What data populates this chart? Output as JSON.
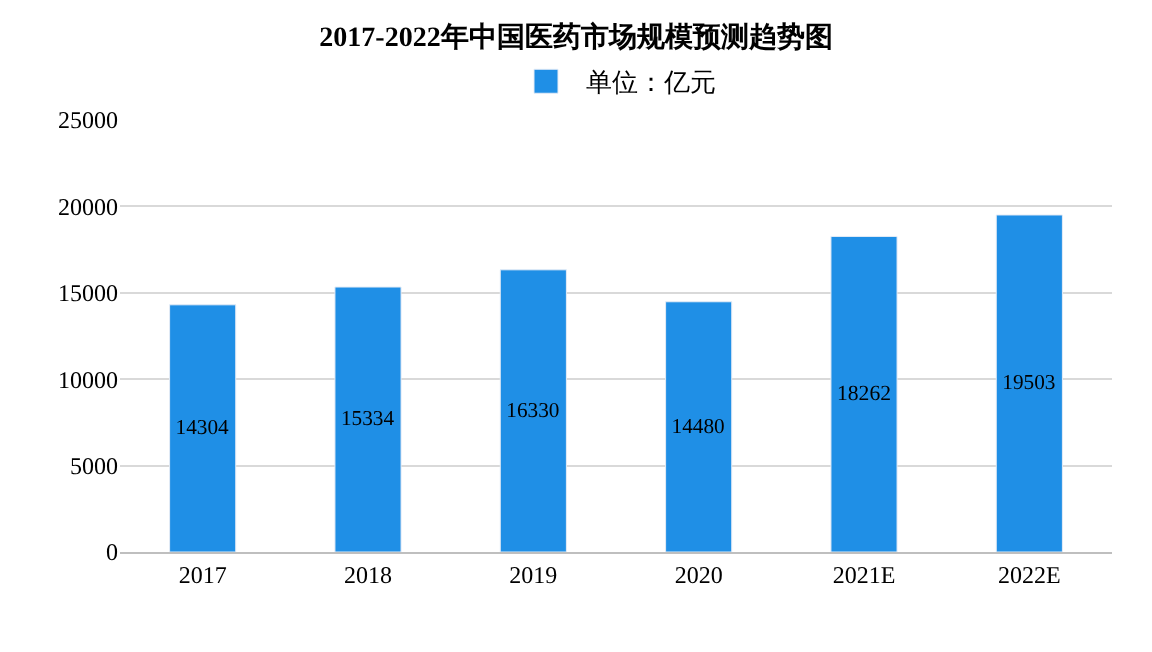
{
  "chart_data": {
    "type": "bar",
    "title": "2017-2022年中国医药市场规模预测趋势图",
    "categories": [
      "2017",
      "2018",
      "2019",
      "2020",
      "2021E",
      "2022E"
    ],
    "series": [
      {
        "name": "单位：亿元",
        "color": "#1f8fe6",
        "values": [
          14304,
          15334,
          16330,
          14480,
          18262,
          19503
        ]
      }
    ],
    "ylim": [
      0,
      25000
    ],
    "yticks": [
      0,
      5000,
      10000,
      15000,
      20000,
      25000
    ],
    "grid": "y",
    "legend": "top",
    "data_labels": true
  }
}
